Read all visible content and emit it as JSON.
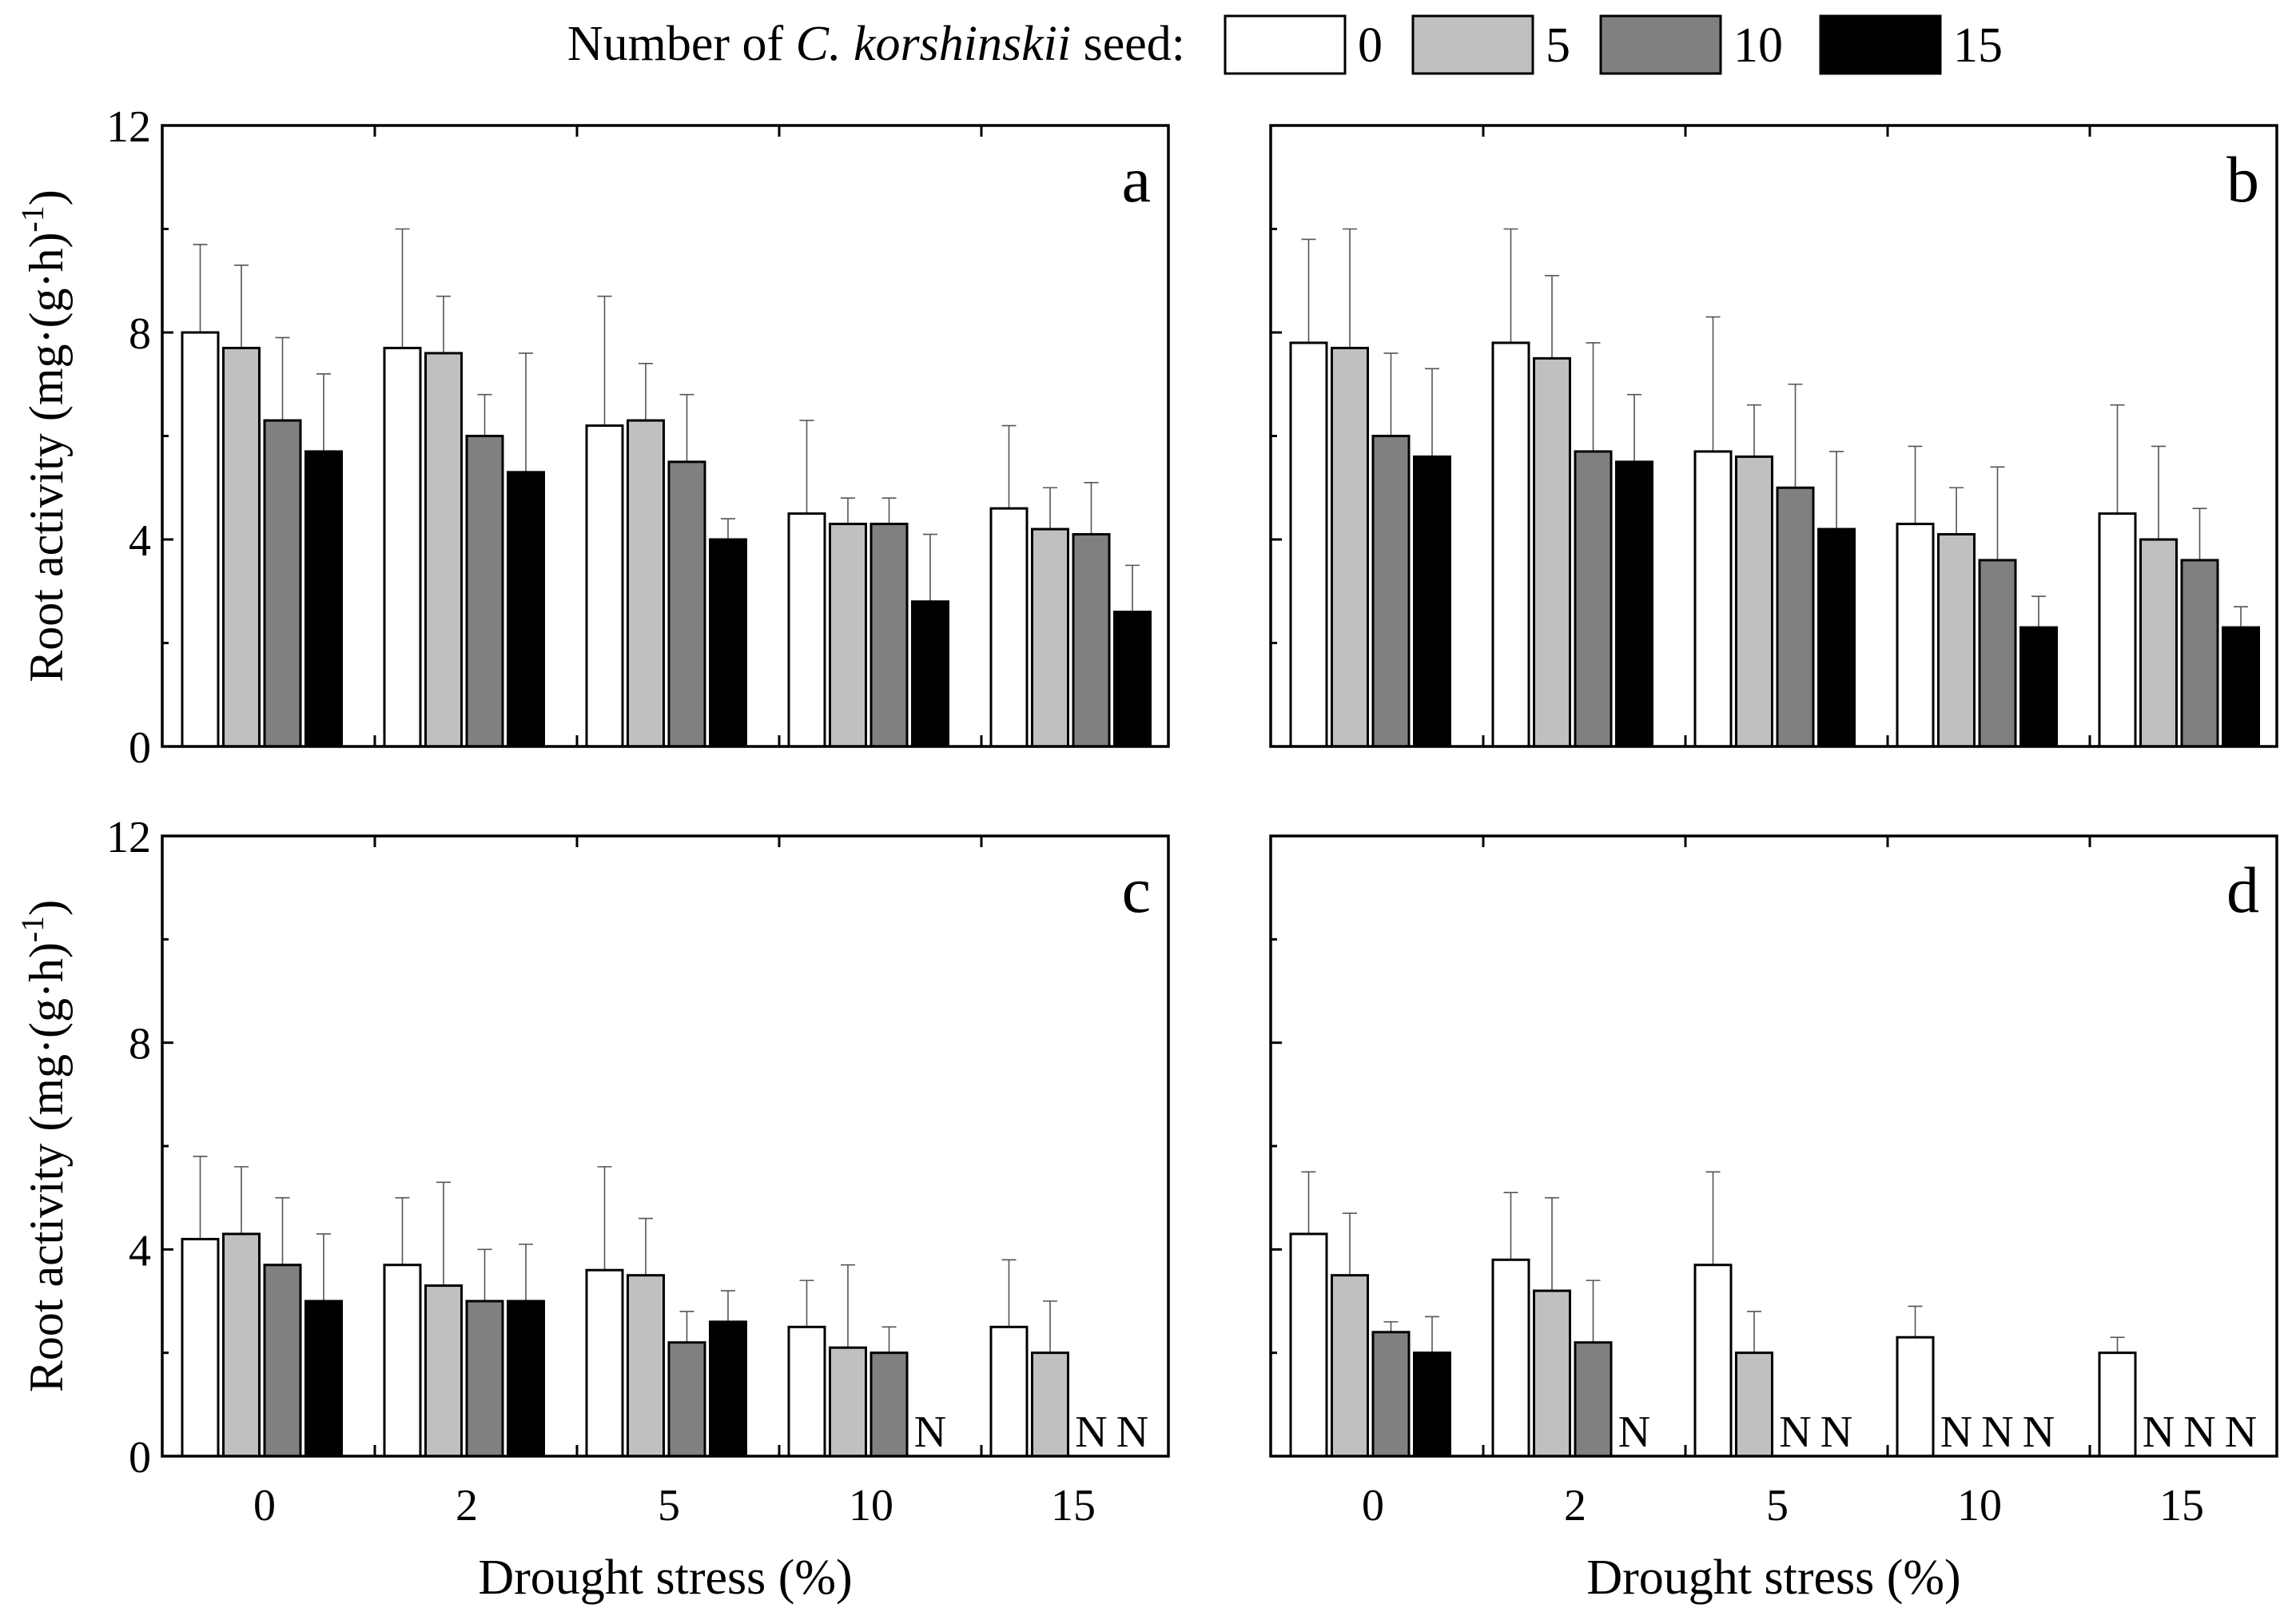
{
  "legend": {
    "prefix": "Number of",
    "species": "C. korshinskii",
    "suffix": "seed",
    "colon": ":",
    "items": [
      {
        "label": "0",
        "color": "#ffffff"
      },
      {
        "label": "5",
        "color": "#c0c0c0"
      },
      {
        "label": "10",
        "color": "#808080"
      },
      {
        "label": "15",
        "color": "#000000"
      }
    ]
  },
  "ylabel_main": "Root activity (mg·(g·h)",
  "ylabel_sup": "-1",
  "ylabel_close": ")",
  "xlabel": "Drought stress (%)",
  "missing_marker": "N",
  "chart_data": [
    {
      "type": "bar",
      "panel": "a",
      "categories": [
        "0",
        "2",
        "5",
        "10",
        "15"
      ],
      "ylim": [
        0,
        12
      ],
      "yticks": [
        0,
        4,
        8,
        12
      ],
      "show_y_ticklabels": true,
      "series": [
        {
          "name": "0",
          "values": [
            8.0,
            7.7,
            6.2,
            4.5,
            4.6
          ],
          "errors": [
            1.7,
            2.3,
            2.5,
            1.8,
            1.6
          ]
        },
        {
          "name": "5",
          "values": [
            7.7,
            7.6,
            6.3,
            4.3,
            4.2
          ],
          "errors": [
            1.6,
            1.1,
            1.1,
            0.5,
            0.8
          ]
        },
        {
          "name": "10",
          "values": [
            6.3,
            6.0,
            5.5,
            4.3,
            4.1
          ],
          "errors": [
            1.6,
            0.8,
            1.3,
            0.5,
            1.0
          ]
        },
        {
          "name": "15",
          "values": [
            5.7,
            5.3,
            4.0,
            2.8,
            2.6
          ],
          "errors": [
            1.5,
            2.3,
            0.4,
            1.3,
            0.9
          ]
        }
      ]
    },
    {
      "type": "bar",
      "panel": "b",
      "categories": [
        "0",
        "2",
        "5",
        "10",
        "15"
      ],
      "ylim": [
        0,
        12
      ],
      "yticks": [
        0,
        4,
        8,
        12
      ],
      "show_y_ticklabels": false,
      "series": [
        {
          "name": "0",
          "values": [
            7.8,
            7.8,
            5.7,
            4.3,
            4.5
          ],
          "errors": [
            2.0,
            2.2,
            2.6,
            1.5,
            2.1
          ]
        },
        {
          "name": "5",
          "values": [
            7.7,
            7.5,
            5.6,
            4.1,
            4.0
          ],
          "errors": [
            2.3,
            1.6,
            1.0,
            0.9,
            1.8
          ]
        },
        {
          "name": "10",
          "values": [
            6.0,
            5.7,
            5.0,
            3.6,
            3.6
          ],
          "errors": [
            1.6,
            2.1,
            2.0,
            1.8,
            1.0
          ]
        },
        {
          "name": "15",
          "values": [
            5.6,
            5.5,
            4.2,
            2.3,
            2.3
          ],
          "errors": [
            1.7,
            1.3,
            1.5,
            0.6,
            0.4
          ]
        }
      ]
    },
    {
      "type": "bar",
      "panel": "c",
      "categories": [
        "0",
        "2",
        "5",
        "10",
        "15"
      ],
      "ylim": [
        0,
        12
      ],
      "yticks": [
        0,
        4,
        8,
        12
      ],
      "show_y_ticklabels": true,
      "series": [
        {
          "name": "0",
          "values": [
            4.2,
            3.7,
            3.6,
            2.5,
            2.5
          ],
          "errors": [
            1.6,
            1.3,
            2.0,
            0.9,
            1.3
          ]
        },
        {
          "name": "5",
          "values": [
            4.3,
            3.3,
            3.5,
            2.1,
            2.0
          ],
          "errors": [
            1.3,
            2.0,
            1.1,
            1.6,
            1.0
          ]
        },
        {
          "name": "10",
          "values": [
            3.7,
            3.0,
            2.2,
            2.0,
            null
          ],
          "errors": [
            1.3,
            1.0,
            0.6,
            0.5,
            null
          ]
        },
        {
          "name": "15",
          "values": [
            3.0,
            3.0,
            2.6,
            null,
            null
          ],
          "errors": [
            1.3,
            1.1,
            0.6,
            null,
            null
          ]
        }
      ]
    },
    {
      "type": "bar",
      "panel": "d",
      "categories": [
        "0",
        "2",
        "5",
        "10",
        "15"
      ],
      "ylim": [
        0,
        12
      ],
      "yticks": [
        0,
        4,
        8,
        12
      ],
      "show_y_ticklabels": false,
      "series": [
        {
          "name": "0",
          "values": [
            4.3,
            3.8,
            3.7,
            2.3,
            2.0
          ],
          "errors": [
            1.2,
            1.3,
            1.8,
            0.6,
            0.3
          ]
        },
        {
          "name": "5",
          "values": [
            3.5,
            3.2,
            2.0,
            null,
            null
          ],
          "errors": [
            1.2,
            1.8,
            0.8,
            null,
            null
          ]
        },
        {
          "name": "10",
          "values": [
            2.4,
            2.2,
            null,
            null,
            null
          ],
          "errors": [
            0.2,
            1.2,
            null,
            null,
            null
          ]
        },
        {
          "name": "15",
          "values": [
            2.0,
            null,
            null,
            null,
            null
          ],
          "errors": [
            0.7,
            null,
            null,
            null,
            null
          ]
        }
      ]
    }
  ]
}
